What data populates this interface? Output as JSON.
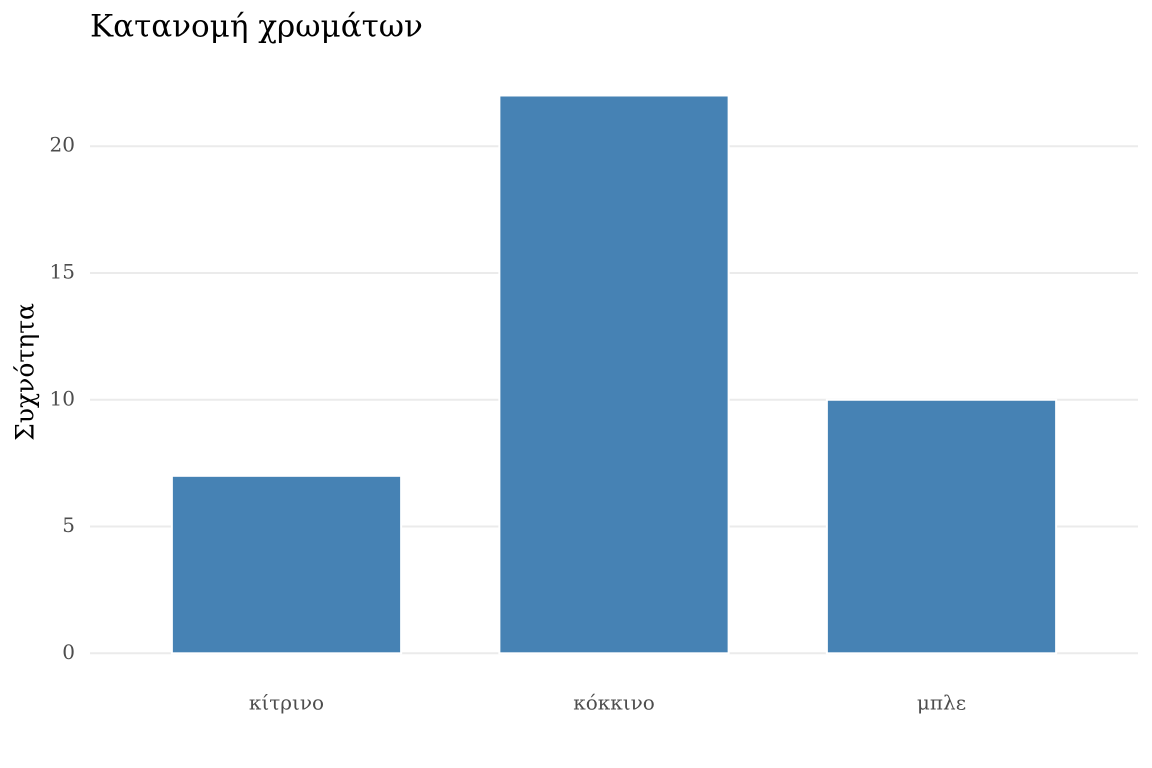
{
  "chart_data": {
    "type": "bar",
    "title": "Κατανομή χρωμάτων",
    "y_label": "Συχνότητα",
    "categories": [
      "κίτρινο",
      "κόκκινο",
      "μπλε"
    ],
    "values": [
      7,
      22,
      10
    ],
    "color": "#4682b4",
    "ylim": [
      -1.1,
      23.1
    ],
    "yticks": [
      0,
      5,
      10,
      15,
      20
    ],
    "grid": true
  }
}
